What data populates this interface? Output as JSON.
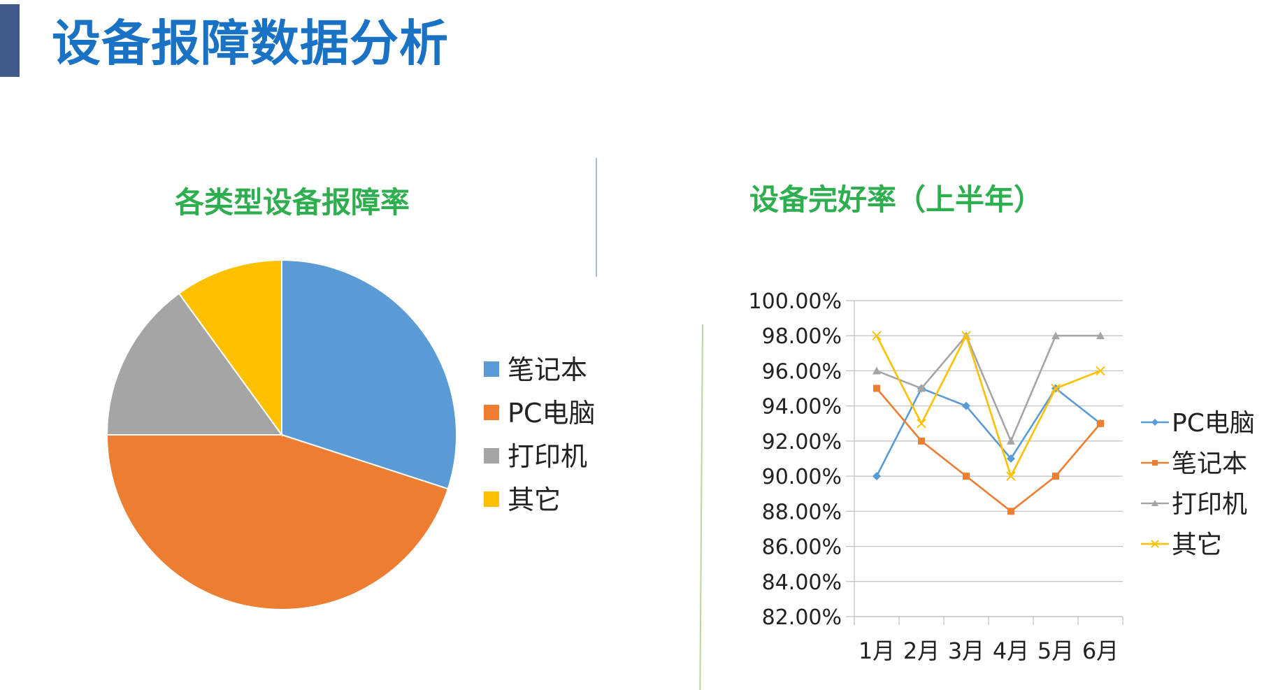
{
  "page": {
    "title": "设备报障数据分析"
  },
  "colors": {
    "accent_bar": "#3f5a8a",
    "title": "#1a72c4",
    "chart_title": "#2eae4f"
  },
  "chart_data": [
    {
      "type": "pie",
      "title": "各类型设备报障率",
      "categories": [
        "笔记本",
        "PC电脑",
        "打印机",
        "其它"
      ],
      "values": [
        30,
        45,
        15,
        10
      ],
      "colors": [
        "#5b9bd5",
        "#ed7d31",
        "#a5a5a5",
        "#ffc000"
      ],
      "legend_placement": "right"
    },
    {
      "type": "line",
      "title": "设备完好率（上半年）",
      "categories": [
        "1月",
        "2月",
        "3月",
        "4月",
        "5月",
        "6月"
      ],
      "series": [
        {
          "name": "PC电脑",
          "values": [
            90,
            95,
            94,
            91,
            95,
            93
          ],
          "color": "#5b9bd5",
          "marker": "diamond"
        },
        {
          "name": "笔记本",
          "values": [
            95,
            92,
            90,
            88,
            90,
            93
          ],
          "color": "#ed7d31",
          "marker": "square"
        },
        {
          "name": "打印机",
          "values": [
            96,
            95,
            98,
            92,
            98,
            98
          ],
          "color": "#a5a5a5",
          "marker": "triangle"
        },
        {
          "name": "其它",
          "values": [
            98,
            93,
            98,
            90,
            95,
            96
          ],
          "color": "#ffc000",
          "marker": "x"
        }
      ],
      "ylim": [
        82,
        100
      ],
      "ytick_step": 2,
      "ytick_format": "percent_2dp",
      "grid": true,
      "legend_placement": "right"
    }
  ]
}
